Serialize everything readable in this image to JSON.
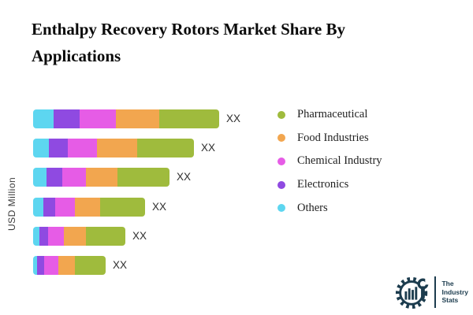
{
  "header": {
    "title_line1": "Enthalpy Recovery Rotors Market Share By",
    "title_line2": "Applications"
  },
  "chart_data": {
    "type": "bar",
    "orientation": "horizontal",
    "stacked": true,
    "title": "Enthalpy Recovery Rotors Market Share By Applications",
    "ylabel": "USD Million",
    "xlabel": "",
    "categories": [
      "1",
      "2",
      "3",
      "4",
      "5",
      "6"
    ],
    "category_labels_visible": false,
    "axis_ticks_visible": false,
    "grid": false,
    "bar_value_label": "XX",
    "value_labels": [
      "XX",
      "XX",
      "XX",
      "XX",
      "XX",
      "XX"
    ],
    "units_note": "values are relative segment lengths estimated from pixels; actual figures masked as XX",
    "series": [
      {
        "name": "Others",
        "color": "#5dd6f0",
        "values": [
          26,
          20,
          17,
          13,
          8,
          5
        ]
      },
      {
        "name": "Electronics",
        "color": "#8f4ae1",
        "values": [
          33,
          24,
          20,
          15,
          11,
          9
        ]
      },
      {
        "name": "Chemical Industry",
        "color": "#e65ce6",
        "values": [
          46,
          37,
          30,
          25,
          20,
          18
        ]
      },
      {
        "name": "Food Industries",
        "color": "#f2a64f",
        "values": [
          55,
          51,
          40,
          32,
          28,
          21
        ]
      },
      {
        "name": "Pharmaceutical",
        "color": "#9fbb3d",
        "values": [
          76,
          72,
          66,
          57,
          50,
          39
        ]
      }
    ],
    "legend_position": "right"
  },
  "legend": {
    "items": [
      {
        "label": "Pharmaceutical",
        "color": "#9fbb3d"
      },
      {
        "label": "Food Industries",
        "color": "#f2a64f"
      },
      {
        "label": "Chemical Industry",
        "color": "#e65ce6"
      },
      {
        "label": "Electronics",
        "color": "#8f4ae1"
      },
      {
        "label": "Others",
        "color": "#5dd6f0"
      }
    ]
  },
  "logo": {
    "line1": "The",
    "line2": "Industry",
    "line3": "Stats",
    "color": "#1c3c4e"
  }
}
